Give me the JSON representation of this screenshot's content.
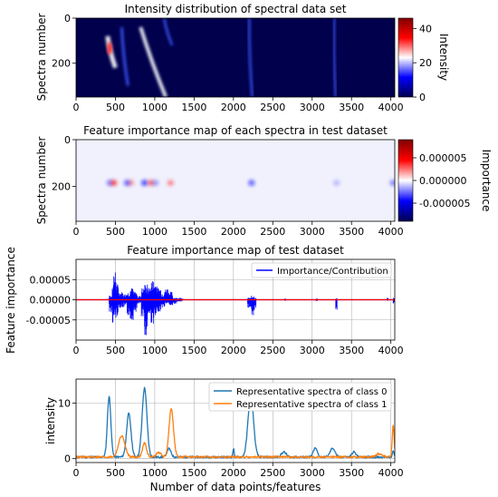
{
  "chart_data": [
    {
      "type": "heatmap",
      "title": "Intensity distribution of spectral data set",
      "xlabel": "",
      "ylabel": "Spectra number",
      "xlim": [
        0,
        4050
      ],
      "ylim": [
        0,
        350
      ],
      "x_ticks": [
        0,
        500,
        1000,
        1500,
        2000,
        2500,
        3000,
        3500,
        4000
      ],
      "y_ticks": [
        0,
        200
      ],
      "colorbar": {
        "label": "Intensity",
        "range": [
          0,
          46
        ],
        "ticks": [
          0,
          20,
          40
        ],
        "colormap": "seismic"
      },
      "bright_bands": [
        {
          "x_start": 400,
          "x_end": 500,
          "y_start": 80,
          "y_end": 220,
          "peak": 45
        },
        {
          "x_start": 580,
          "x_end": 660,
          "y_start": 40,
          "y_end": 300,
          "peak": 12
        },
        {
          "x_start": 820,
          "x_end": 1140,
          "y_start": 40,
          "y_end": 350,
          "peak": 28
        },
        {
          "x_start": 1120,
          "x_end": 1220,
          "y_start": 0,
          "y_end": 120,
          "peak": 8
        },
        {
          "x_start": 2200,
          "x_end": 2240,
          "y_start": 0,
          "y_end": 350,
          "peak": 6
        },
        {
          "x_start": 3280,
          "x_end": 3300,
          "y_start": 0,
          "y_end": 350,
          "peak": 4
        }
      ]
    },
    {
      "type": "heatmap",
      "title": "Feature importance map of each spectra in test dataset",
      "xlabel": "",
      "ylabel": "Spectra number",
      "xlim": [
        0,
        4050
      ],
      "ylim": [
        0,
        350
      ],
      "x_ticks": [
        0,
        500,
        1000,
        1500,
        2000,
        2500,
        3000,
        3500,
        4000
      ],
      "y_ticks": [
        0,
        200
      ],
      "colorbar": {
        "label": "Importance",
        "range": [
          -9e-06,
          9e-06
        ],
        "ticks": [
          "0.000005",
          "0.000000",
          "-0.000005"
        ],
        "colormap": "seismic"
      },
      "spots": [
        {
          "x": 430,
          "y": 185,
          "value": -4e-06
        },
        {
          "x": 480,
          "y": 185,
          "value": 6e-06
        },
        {
          "x": 650,
          "y": 185,
          "value": -5e-06
        },
        {
          "x": 700,
          "y": 185,
          "value": 3e-06
        },
        {
          "x": 870,
          "y": 185,
          "value": -6e-06
        },
        {
          "x": 950,
          "y": 185,
          "value": 5e-06
        },
        {
          "x": 1010,
          "y": 185,
          "value": -3e-06
        },
        {
          "x": 1200,
          "y": 185,
          "value": 4e-06
        },
        {
          "x": 2230,
          "y": 185,
          "value": -5e-06
        },
        {
          "x": 3310,
          "y": 185,
          "value": -2e-06
        },
        {
          "x": 4030,
          "y": 185,
          "value": -4e-06
        }
      ]
    },
    {
      "type": "line",
      "title": "Feature importance map of test dataset",
      "xlabel": "",
      "ylabel": "Feature importance",
      "xlim": [
        0,
        4050
      ],
      "ylim": [
        -0.0001,
        0.0001
      ],
      "x_ticks": [
        0,
        500,
        1000,
        1500,
        2000,
        2500,
        3000,
        3500,
        4000
      ],
      "y_ticks": [
        {
          "value": 5e-05,
          "label": "0.00005"
        },
        {
          "value": 0,
          "label": "0.00000"
        },
        {
          "value": -5e-05,
          "label": "-0.00005"
        }
      ],
      "grid": true,
      "legend_position": "top-right",
      "zero_line_color": "#ff0000",
      "series": [
        {
          "name": "Importance/Contribution",
          "color": "#0000ff",
          "envelope": [
            {
              "x": 380,
              "min": 0,
              "max": 2e-06
            },
            {
              "x": 420,
              "min": -3e-05,
              "max": 1e-05
            },
            {
              "x": 460,
              "min": -6e-05,
              "max": 5e-05
            },
            {
              "x": 480,
              "min": -5e-05,
              "max": 7e-05
            },
            {
              "x": 510,
              "min": -4e-05,
              "max": 4e-05
            },
            {
              "x": 540,
              "min": -2e-05,
              "max": 2e-05
            },
            {
              "x": 600,
              "min": -2e-05,
              "max": 1.5e-05
            },
            {
              "x": 650,
              "min": -4e-05,
              "max": 2e-05
            },
            {
              "x": 690,
              "min": -5e-05,
              "max": 3e-05
            },
            {
              "x": 730,
              "min": -3e-05,
              "max": 2e-05
            },
            {
              "x": 780,
              "min": -1e-05,
              "max": 1e-05
            },
            {
              "x": 830,
              "min": -5e-05,
              "max": 3e-05
            },
            {
              "x": 870,
              "min": -9e-05,
              "max": 4e-05
            },
            {
              "x": 910,
              "min": -4e-05,
              "max": 3e-05
            },
            {
              "x": 950,
              "min": -6e-05,
              "max": 5e-05
            },
            {
              "x": 990,
              "min": -5e-05,
              "max": 4.5e-05
            },
            {
              "x": 1030,
              "min": -3e-05,
              "max": 3e-05
            },
            {
              "x": 1080,
              "min": -2e-05,
              "max": 2e-05
            },
            {
              "x": 1130,
              "min": -1e-05,
              "max": 3e-05
            },
            {
              "x": 1180,
              "min": -1.5e-05,
              "max": 2e-05
            },
            {
              "x": 1230,
              "min": -1e-05,
              "max": 5e-06
            },
            {
              "x": 1280,
              "min": -5e-06,
              "max": 5e-06
            },
            {
              "x": 1340,
              "min": -3e-06,
              "max": 3e-06
            },
            {
              "x": 2180,
              "min": -2e-05,
              "max": 5e-06
            },
            {
              "x": 2230,
              "min": -6e-05,
              "max": 1e-05
            },
            {
              "x": 2270,
              "min": -2e-05,
              "max": 5e-06
            },
            {
              "x": 2650,
              "min": -3e-06,
              "max": 3e-06
            },
            {
              "x": 3050,
              "min": -3e-06,
              "max": 3e-06
            },
            {
              "x": 3300,
              "min": -2.5e-05,
              "max": 3e-06
            },
            {
              "x": 3950,
              "min": -3e-06,
              "max": 5e-06
            },
            {
              "x": 4030,
              "min": -1e-05,
              "max": 5e-06
            }
          ]
        }
      ]
    },
    {
      "type": "line",
      "title": "",
      "xlabel": "Number of data points/features",
      "ylabel": "intensity",
      "xlim": [
        0,
        4050
      ],
      "ylim": [
        -0.7,
        14.3
      ],
      "x_ticks": [
        0,
        500,
        1000,
        1500,
        2000,
        2500,
        3000,
        3500,
        4000
      ],
      "y_ticks": [
        0,
        10
      ],
      "grid": true,
      "legend_position": "top-right",
      "baseline": 0.3,
      "series": [
        {
          "name": "Representative spectra of class 0",
          "color": "#1f77b4",
          "peaks": [
            {
              "x": 420,
              "height": 10.9,
              "width": 22
            },
            {
              "x": 670,
              "height": 7.8,
              "width": 28
            },
            {
              "x": 870,
              "height": 12.4,
              "width": 30
            },
            {
              "x": 1180,
              "height": 1.5,
              "width": 25
            },
            {
              "x": 2220,
              "height": 11.0,
              "width": 35
            },
            {
              "x": 2000,
              "height": 1.5,
              "width": 8
            },
            {
              "x": 2640,
              "height": 0.9,
              "width": 30
            },
            {
              "x": 3040,
              "height": 1.6,
              "width": 25
            },
            {
              "x": 3260,
              "height": 1.6,
              "width": 30
            },
            {
              "x": 3530,
              "height": 0.9,
              "width": 25
            },
            {
              "x": 4030,
              "height": 1.0,
              "width": 10
            }
          ]
        },
        {
          "name": "Representative spectra of class 1",
          "color": "#ff7f0e",
          "peaks": [
            {
              "x": 580,
              "height": 3.8,
              "width": 40
            },
            {
              "x": 870,
              "height": 2.5,
              "width": 25
            },
            {
              "x": 1210,
              "height": 8.8,
              "width": 28
            },
            {
              "x": 1050,
              "height": 0.8,
              "width": 30
            },
            {
              "x": 3850,
              "height": 0.6,
              "width": 40
            },
            {
              "x": 4030,
              "height": 5.7,
              "width": 12
            }
          ]
        }
      ]
    }
  ]
}
